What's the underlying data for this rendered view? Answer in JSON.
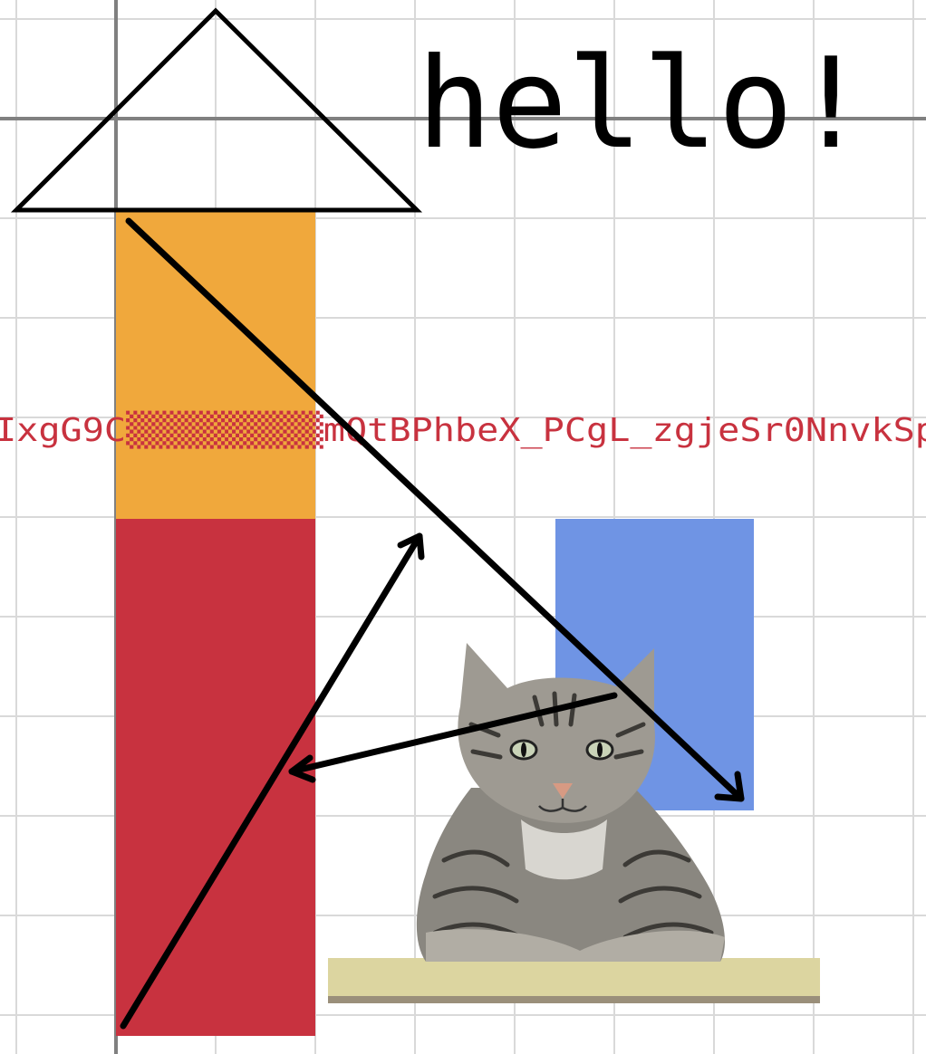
{
  "canvas": {
    "greeting": "hello!",
    "code_text": "IxgG9C▒▒▒▒▒▒▒▒▒mQtBPhbeX_PCgL_zgjeSr0NnvkSp",
    "colors": {
      "background": "#ffffff",
      "grid": "#d9d9d9",
      "axis": "#808080",
      "orange_block": "#f0a83c",
      "red_block": "#c8323f",
      "blue_block": "#6f94e4",
      "code_text": "#c8323f",
      "stroke": "#000000"
    },
    "illustration": {
      "subject": "tabby cat sitting on a mat",
      "icon": "cat-image"
    }
  }
}
